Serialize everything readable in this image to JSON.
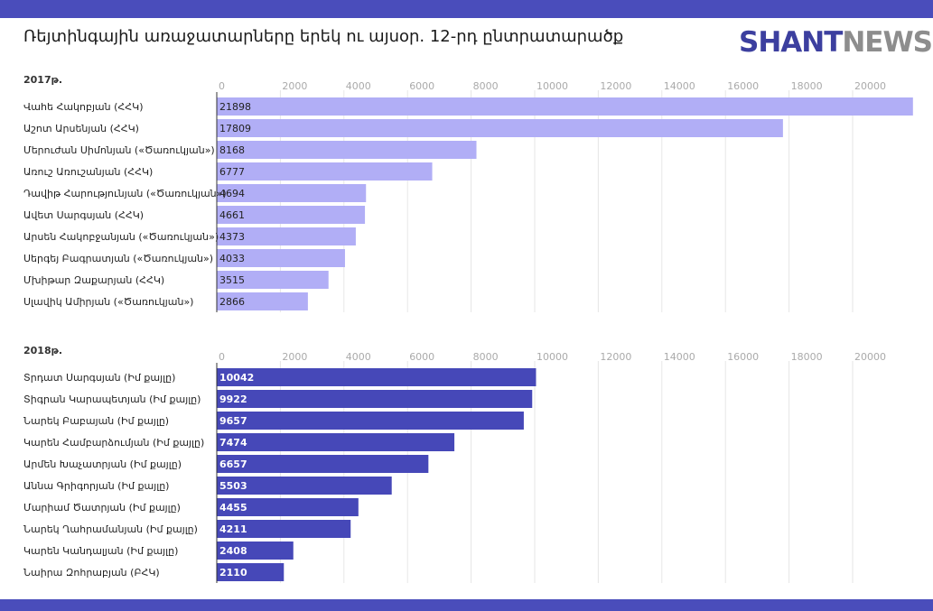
{
  "header": {
    "title": "Ռեյտինգային առաջատարները երեկ ու այսօր. 12-րդ ընտրատարածք",
    "logo_brand": "SHANT",
    "logo_news": "NEWS"
  },
  "colors": {
    "band": "#4a4dbb",
    "bar_2017": "#b1aef6",
    "bar_2018": "#4648b8",
    "grid": "#e6e6e6",
    "tick_text": "#aaaaaa"
  },
  "chart_data": [
    {
      "type": "bar",
      "orientation": "horizontal",
      "title": "2017թ.",
      "ylim": [
        0,
        22000
      ],
      "ticks": [
        0,
        2000,
        4000,
        6000,
        8000,
        10000,
        12000,
        14000,
        16000,
        18000,
        20000
      ],
      "grid": true,
      "categories": [
        "Վահե Հակոբյան (ՀՀԿ)",
        "Աշոտ Արսենյան (ՀՀԿ)",
        "Մերուժան Սիմոնյան («Ծառուկյան»)",
        "Առուշ Առուշանյան (ՀՀԿ)",
        "Դավիթ Հարությունյան («Ծառուկյան»)",
        "Ավետ Սարգսյան (ՀՀԿ)",
        "Արսեն Հակոբջանյան («Ծառուկյան»)",
        "Սերգեյ Բագրատյան («Ծառուկյան»)",
        "Մխիթար Զաքարյան (ՀՀԿ)",
        "Սլավիկ Ամիրյան («Ծառուկյան»)"
      ],
      "values": [
        21898,
        17809,
        8168,
        6777,
        4694,
        4661,
        4373,
        4033,
        3515,
        2866
      ]
    },
    {
      "type": "bar",
      "orientation": "horizontal",
      "title": "2018թ.",
      "ylim": [
        0,
        22000
      ],
      "ticks": [
        0,
        2000,
        4000,
        6000,
        8000,
        10000,
        12000,
        14000,
        16000,
        18000,
        20000
      ],
      "grid": true,
      "categories": [
        "Տրդատ Սարգսյան (Իմ քայլը)",
        "Տիգրան Կարապետյան (Իմ քայլը)",
        "Նարեկ Բաբայան (Իմ քայլը)",
        "Կարեն Համբարձումյան (Իմ քայլը)",
        "Արմեն Խաչատրյան (Իմ քայլը)",
        "Աննա Գրիգորյան (Իմ քայլը)",
        "Մարիամ Ծատրյան (Իմ քայլը)",
        "Նարեկ Ղահրամանյան (Իմ քայլը)",
        "Կարեն Կանդալյան (Իմ քայլը)",
        "Նաիրա Զոհրաբյան (ԲՀԿ)"
      ],
      "values": [
        10042,
        9922,
        9657,
        7474,
        6657,
        5503,
        4455,
        4211,
        2408,
        2110
      ]
    }
  ]
}
